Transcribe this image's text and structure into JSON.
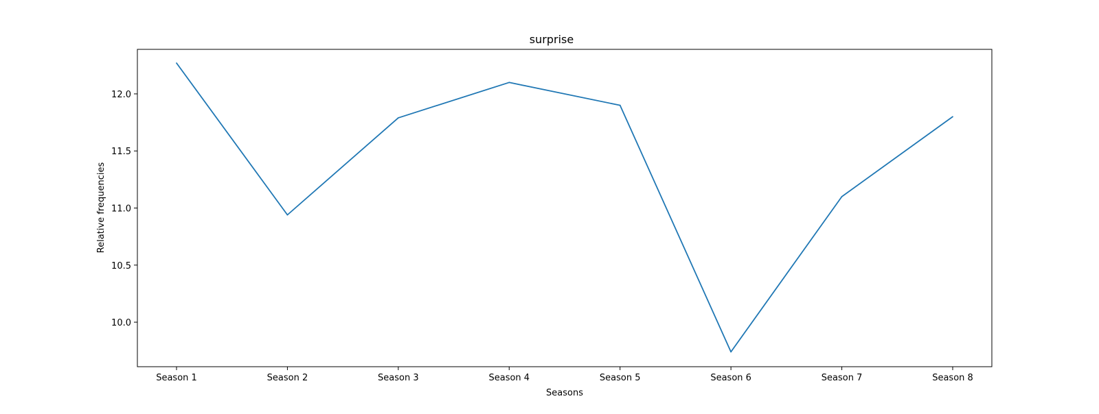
{
  "chart_data": {
    "type": "line",
    "title": "surprise",
    "xlabel": "Seasons",
    "ylabel": "Relative frequencies",
    "categories": [
      "Season 1",
      "Season 2",
      "Season 3",
      "Season 4",
      "Season 5",
      "Season 6",
      "Season 7",
      "Season 8"
    ],
    "series": [
      {
        "values": [
          12.27,
          10.94,
          11.79,
          12.1,
          11.9,
          9.74,
          11.1,
          11.8
        ],
        "color": "#1f77b4"
      }
    ],
    "ylim": [
      9.61,
      12.39
    ],
    "yticks": [
      10.0,
      10.5,
      11.0,
      11.5,
      12.0
    ],
    "grid": false,
    "legend": false
  }
}
